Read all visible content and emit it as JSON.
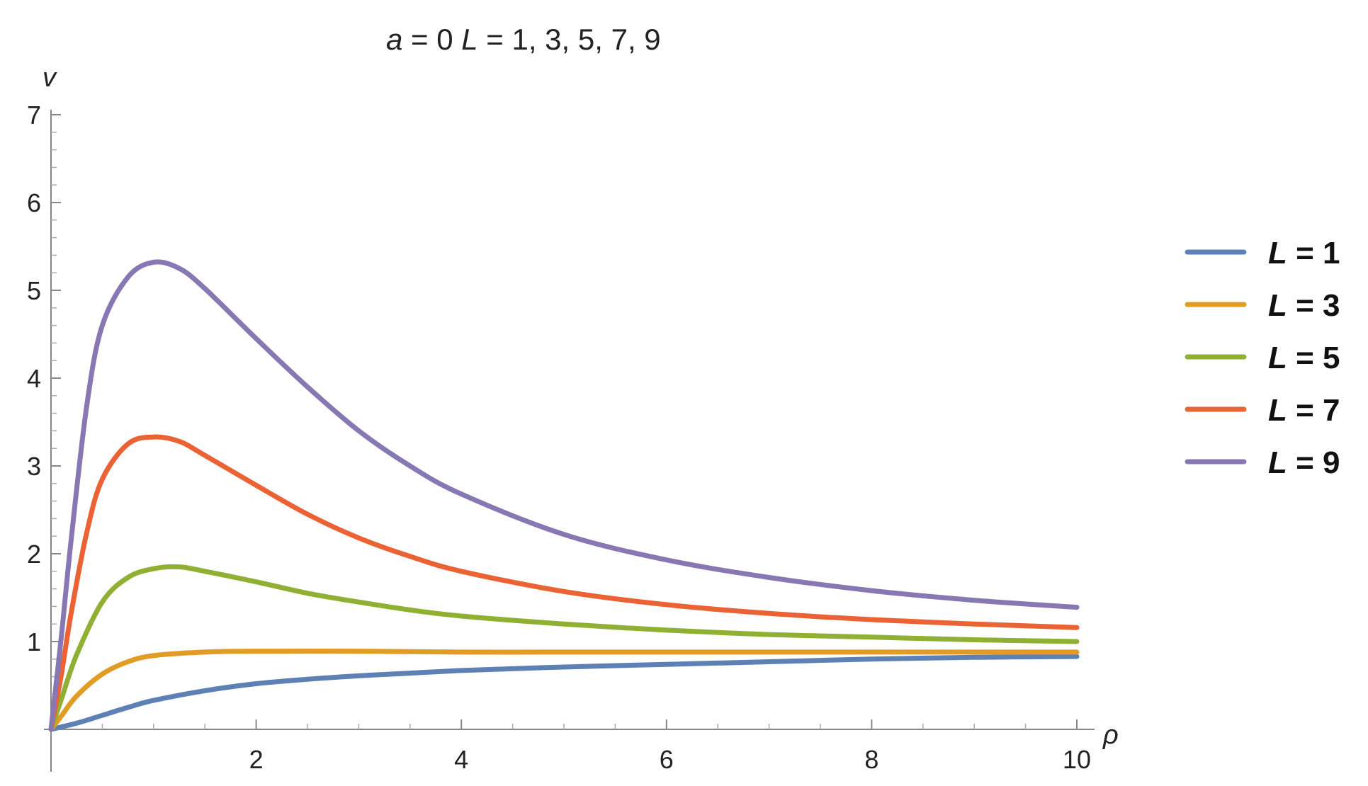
{
  "chart_data": {
    "type": "line",
    "title": {
      "var_a": "a",
      "eq_a": " = 0 ",
      "var_L": "L",
      "eq_L": " = 1, 3, 5, 7, 9"
    },
    "xlabel": "ρ",
    "ylabel": "v",
    "xlim": [
      0,
      10
    ],
    "ylim": [
      0,
      7
    ],
    "x_ticks": [
      2,
      4,
      6,
      8,
      10
    ],
    "y_ticks": [
      1,
      2,
      3,
      4,
      5,
      6,
      7
    ],
    "grid": false,
    "legend_position": "right",
    "series": [
      {
        "name": "L = 1",
        "label_var": "L",
        "label_rest": " = 1",
        "color": "#5E81B5",
        "points": [
          [
            0,
            0
          ],
          [
            0.25,
            0.07
          ],
          [
            0.5,
            0.16
          ],
          [
            0.75,
            0.25
          ],
          [
            1,
            0.33
          ],
          [
            1.5,
            0.44
          ],
          [
            2,
            0.52
          ],
          [
            2.5,
            0.57
          ],
          [
            3,
            0.61
          ],
          [
            3.5,
            0.64
          ],
          [
            4,
            0.67
          ],
          [
            5,
            0.71
          ],
          [
            6,
            0.74
          ],
          [
            7,
            0.77
          ],
          [
            8,
            0.8
          ],
          [
            9,
            0.82
          ],
          [
            10,
            0.83
          ]
        ]
      },
      {
        "name": "L = 3",
        "label_var": "L",
        "label_rest": " = 3",
        "color": "#E19C24",
        "points": [
          [
            0,
            0
          ],
          [
            0.1,
            0.15
          ],
          [
            0.25,
            0.38
          ],
          [
            0.5,
            0.63
          ],
          [
            0.75,
            0.77
          ],
          [
            1,
            0.84
          ],
          [
            1.5,
            0.88
          ],
          [
            2,
            0.89
          ],
          [
            3,
            0.89
          ],
          [
            4,
            0.88
          ],
          [
            5,
            0.88
          ],
          [
            6,
            0.88
          ],
          [
            7,
            0.88
          ],
          [
            8,
            0.88
          ],
          [
            9,
            0.88
          ],
          [
            10,
            0.88
          ]
        ]
      },
      {
        "name": "L = 5",
        "label_var": "L",
        "label_rest": " = 5",
        "color": "#8FB032",
        "points": [
          [
            0,
            0
          ],
          [
            0.1,
            0.34
          ],
          [
            0.25,
            0.85
          ],
          [
            0.5,
            1.45
          ],
          [
            0.75,
            1.73
          ],
          [
            1,
            1.83
          ],
          [
            1.25,
            1.85
          ],
          [
            1.5,
            1.8
          ],
          [
            2,
            1.68
          ],
          [
            2.5,
            1.55
          ],
          [
            3,
            1.45
          ],
          [
            3.5,
            1.36
          ],
          [
            4,
            1.29
          ],
          [
            5,
            1.2
          ],
          [
            6,
            1.13
          ],
          [
            7,
            1.08
          ],
          [
            8,
            1.05
          ],
          [
            9,
            1.02
          ],
          [
            10,
            1.0
          ]
        ]
      },
      {
        "name": "L = 7",
        "label_var": "L",
        "label_rest": " = 7",
        "color": "#EB6235",
        "points": [
          [
            0,
            0
          ],
          [
            0.1,
            0.62
          ],
          [
            0.2,
            1.35
          ],
          [
            0.35,
            2.25
          ],
          [
            0.5,
            2.85
          ],
          [
            0.75,
            3.25
          ],
          [
            1,
            3.33
          ],
          [
            1.25,
            3.28
          ],
          [
            1.5,
            3.12
          ],
          [
            2,
            2.78
          ],
          [
            2.5,
            2.45
          ],
          [
            3,
            2.18
          ],
          [
            3.5,
            1.97
          ],
          [
            4,
            1.8
          ],
          [
            5,
            1.57
          ],
          [
            6,
            1.42
          ],
          [
            7,
            1.32
          ],
          [
            8,
            1.25
          ],
          [
            9,
            1.2
          ],
          [
            10,
            1.16
          ]
        ]
      },
      {
        "name": "L = 9",
        "label_var": "L",
        "label_rest": " = 9",
        "color": "#8778B3",
        "points": [
          [
            0,
            0
          ],
          [
            0.1,
            1.05
          ],
          [
            0.2,
            2.2
          ],
          [
            0.35,
            3.7
          ],
          [
            0.5,
            4.6
          ],
          [
            0.75,
            5.15
          ],
          [
            1,
            5.32
          ],
          [
            1.25,
            5.25
          ],
          [
            1.5,
            5.02
          ],
          [
            2,
            4.45
          ],
          [
            2.5,
            3.9
          ],
          [
            3,
            3.4
          ],
          [
            3.5,
            3.0
          ],
          [
            4,
            2.68
          ],
          [
            5,
            2.22
          ],
          [
            6,
            1.93
          ],
          [
            7,
            1.73
          ],
          [
            8,
            1.58
          ],
          [
            9,
            1.47
          ],
          [
            10,
            1.39
          ]
        ]
      }
    ]
  }
}
